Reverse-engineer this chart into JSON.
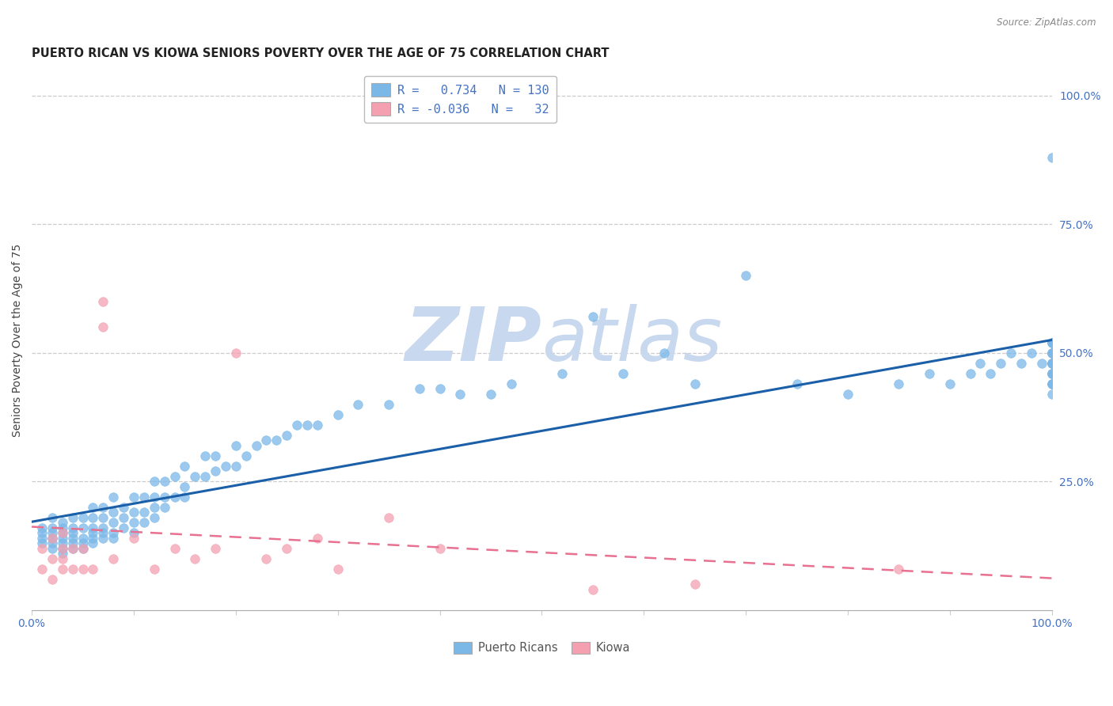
{
  "title": "PUERTO RICAN VS KIOWA SENIORS POVERTY OVER THE AGE OF 75 CORRELATION CHART",
  "source": "Source: ZipAtlas.com",
  "ylabel": "Seniors Poverty Over the Age of 75",
  "r_puerto_rican": 0.734,
  "n_puerto_rican": 130,
  "r_kiowa": -0.036,
  "n_kiowa": 32,
  "blue_scatter_color": "#7BB8E8",
  "pink_scatter_color": "#F4A0B0",
  "blue_line_color": "#1A5FA8",
  "pink_line_color": "#E87090",
  "background_color": "#FFFFFF",
  "watermark_color": "#C8D8EE",
  "grid_color": "#CCCCCC",
  "title_color": "#222222",
  "axis_label_color": "#444444",
  "tick_color": "#444444",
  "right_label_color": "#4472C4",
  "bottom_label_color": "#555555",
  "xlim": [
    0.0,
    1.0
  ],
  "ylim": [
    0.0,
    1.05
  ],
  "pr_x": [
    0.01,
    0.01,
    0.01,
    0.01,
    0.02,
    0.02,
    0.02,
    0.02,
    0.02,
    0.02,
    0.03,
    0.03,
    0.03,
    0.03,
    0.03,
    0.03,
    0.03,
    0.04,
    0.04,
    0.04,
    0.04,
    0.04,
    0.04,
    0.05,
    0.05,
    0.05,
    0.05,
    0.05,
    0.06,
    0.06,
    0.06,
    0.06,
    0.06,
    0.06,
    0.07,
    0.07,
    0.07,
    0.07,
    0.07,
    0.08,
    0.08,
    0.08,
    0.08,
    0.08,
    0.09,
    0.09,
    0.09,
    0.1,
    0.1,
    0.1,
    0.1,
    0.11,
    0.11,
    0.11,
    0.12,
    0.12,
    0.12,
    0.12,
    0.13,
    0.13,
    0.13,
    0.14,
    0.14,
    0.15,
    0.15,
    0.15,
    0.16,
    0.17,
    0.17,
    0.18,
    0.18,
    0.19,
    0.2,
    0.2,
    0.21,
    0.22,
    0.23,
    0.24,
    0.25,
    0.26,
    0.27,
    0.28,
    0.3,
    0.32,
    0.35,
    0.38,
    0.4,
    0.42,
    0.45,
    0.47,
    0.52,
    0.55,
    0.58,
    0.62,
    0.65,
    0.7,
    0.75,
    0.8,
    0.85,
    0.88,
    0.9,
    0.92,
    0.93,
    0.94,
    0.95,
    0.96,
    0.97,
    0.98,
    0.99,
    1.0,
    1.0,
    1.0,
    1.0,
    1.0,
    1.0,
    1.0,
    1.0,
    1.0,
    1.0,
    1.0,
    1.0,
    1.0,
    1.0,
    1.0,
    1.0,
    1.0,
    1.0,
    1.0,
    1.0,
    1.0
  ],
  "pr_y": [
    0.13,
    0.14,
    0.15,
    0.16,
    0.12,
    0.13,
    0.14,
    0.15,
    0.16,
    0.18,
    0.11,
    0.12,
    0.13,
    0.14,
    0.15,
    0.16,
    0.17,
    0.12,
    0.13,
    0.14,
    0.15,
    0.16,
    0.18,
    0.12,
    0.13,
    0.14,
    0.16,
    0.18,
    0.13,
    0.14,
    0.15,
    0.16,
    0.18,
    0.2,
    0.14,
    0.15,
    0.16,
    0.18,
    0.2,
    0.14,
    0.15,
    0.17,
    0.19,
    0.22,
    0.16,
    0.18,
    0.2,
    0.15,
    0.17,
    0.19,
    0.22,
    0.17,
    0.19,
    0.22,
    0.18,
    0.2,
    0.22,
    0.25,
    0.2,
    0.22,
    0.25,
    0.22,
    0.26,
    0.22,
    0.24,
    0.28,
    0.26,
    0.26,
    0.3,
    0.27,
    0.3,
    0.28,
    0.28,
    0.32,
    0.3,
    0.32,
    0.33,
    0.33,
    0.34,
    0.36,
    0.36,
    0.36,
    0.38,
    0.4,
    0.4,
    0.43,
    0.43,
    0.42,
    0.42,
    0.44,
    0.46,
    0.57,
    0.46,
    0.5,
    0.44,
    0.65,
    0.44,
    0.42,
    0.44,
    0.46,
    0.44,
    0.46,
    0.48,
    0.46,
    0.48,
    0.5,
    0.48,
    0.5,
    0.48,
    0.42,
    0.44,
    0.46,
    0.48,
    0.5,
    0.44,
    0.46,
    0.48,
    0.5,
    0.48,
    0.5,
    0.52,
    0.46,
    0.48,
    0.46,
    0.52,
    0.44,
    0.48,
    0.5,
    0.52,
    0.88
  ],
  "ki_x": [
    0.01,
    0.01,
    0.02,
    0.02,
    0.02,
    0.03,
    0.03,
    0.03,
    0.03,
    0.04,
    0.04,
    0.05,
    0.05,
    0.06,
    0.07,
    0.07,
    0.08,
    0.1,
    0.12,
    0.14,
    0.16,
    0.18,
    0.2,
    0.23,
    0.25,
    0.28,
    0.3,
    0.35,
    0.4,
    0.55,
    0.65,
    0.85
  ],
  "ki_y": [
    0.08,
    0.12,
    0.06,
    0.1,
    0.14,
    0.08,
    0.1,
    0.12,
    0.15,
    0.08,
    0.12,
    0.08,
    0.12,
    0.08,
    0.55,
    0.6,
    0.1,
    0.14,
    0.08,
    0.12,
    0.1,
    0.12,
    0.5,
    0.1,
    0.12,
    0.14,
    0.08,
    0.18,
    0.12,
    0.04,
    0.05,
    0.08
  ],
  "ytick_labels_right": [
    "100.0%",
    "75.0%",
    "50.0%",
    "25.0%"
  ],
  "ytick_positions_right": [
    1.0,
    0.75,
    0.5,
    0.25
  ]
}
